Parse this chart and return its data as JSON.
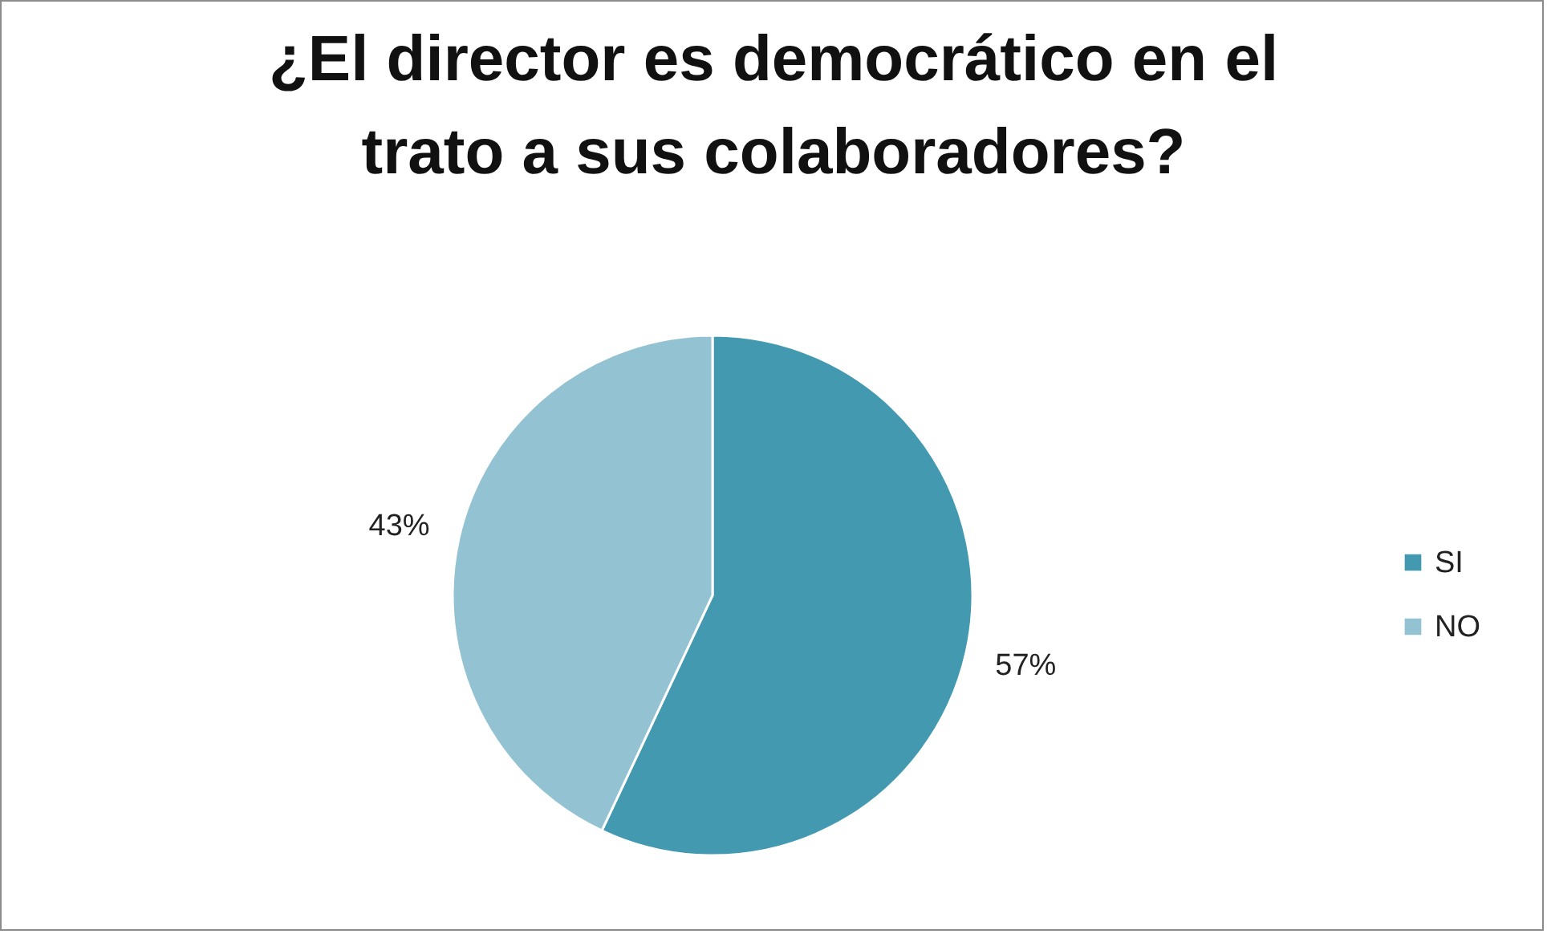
{
  "chart_data": {
    "type": "pie",
    "title": "¿El director es democrático en el\ntrato a sus colaboradores?",
    "categories": [
      "SI",
      "NO"
    ],
    "values": [
      57,
      43
    ],
    "value_labels": [
      "57%",
      "43%"
    ],
    "colors": [
      "#4399b0",
      "#93c3d3"
    ],
    "legend": "right"
  }
}
